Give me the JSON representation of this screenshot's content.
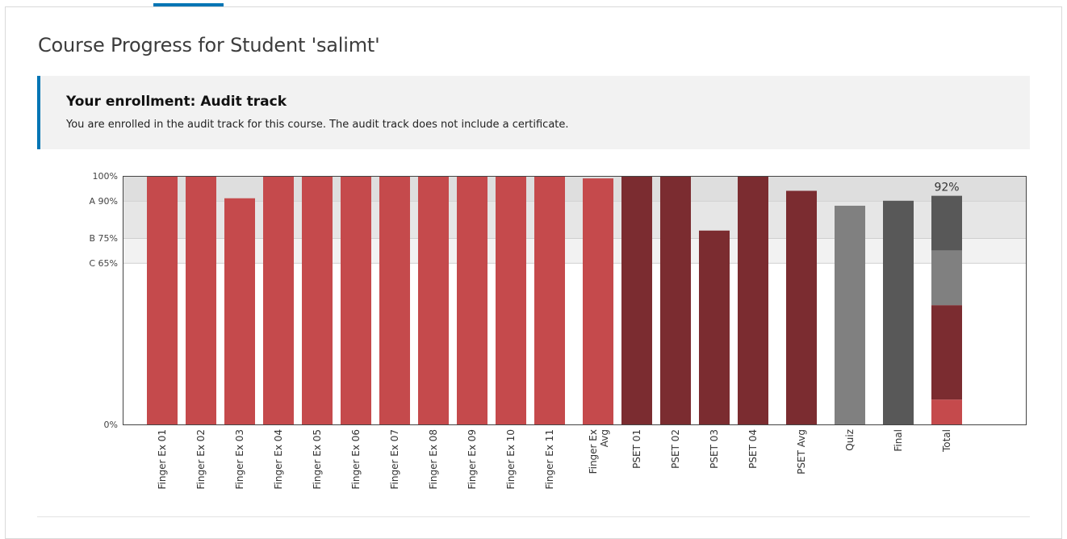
{
  "page": {
    "title": "Course Progress for Student 'salimt'"
  },
  "enrollment": {
    "title": "Your enrollment: Audit track",
    "message": "You are enrolled in the audit track for this course. The audit track does not include a certificate."
  },
  "colors": {
    "accent": "#0075b4",
    "finger_ex": "#c54a4c",
    "pset": "#7b2c30",
    "quiz": "#808080",
    "final": "#585858",
    "band_a": "#dedede",
    "band_b": "#e6e6e6",
    "band_c": "#f2f2f2"
  },
  "chart_data": {
    "type": "bar",
    "ylim": [
      0,
      100
    ],
    "y_ticks": [
      {
        "value": 100,
        "label": "100%"
      },
      {
        "value": 90,
        "label": "A 90%"
      },
      {
        "value": 75,
        "label": "B 75%"
      },
      {
        "value": 65,
        "label": "C 65%"
      },
      {
        "value": 0,
        "label": "0%"
      }
    ],
    "grade_bands": [
      {
        "from": 90,
        "to": 100,
        "grade": "A"
      },
      {
        "from": 75,
        "to": 90,
        "grade": "B"
      },
      {
        "from": 65,
        "to": 75,
        "grade": "C"
      }
    ],
    "bars": [
      {
        "label": "Finger Ex 01",
        "value": 100,
        "group": "finger_ex"
      },
      {
        "label": "Finger Ex 02",
        "value": 100,
        "group": "finger_ex"
      },
      {
        "label": "Finger Ex 03",
        "value": 91,
        "group": "finger_ex"
      },
      {
        "label": "Finger Ex 04",
        "value": 100,
        "group": "finger_ex"
      },
      {
        "label": "Finger Ex 05",
        "value": 100,
        "group": "finger_ex"
      },
      {
        "label": "Finger Ex 06",
        "value": 100,
        "group": "finger_ex"
      },
      {
        "label": "Finger Ex 07",
        "value": 100,
        "group": "finger_ex"
      },
      {
        "label": "Finger Ex 08",
        "value": 100,
        "group": "finger_ex"
      },
      {
        "label": "Finger Ex 09",
        "value": 100,
        "group": "finger_ex"
      },
      {
        "label": "Finger Ex 10",
        "value": 100,
        "group": "finger_ex"
      },
      {
        "label": "Finger Ex 11",
        "value": 100,
        "group": "finger_ex"
      },
      {
        "label": "Finger Ex Avg",
        "value": 99,
        "group": "finger_ex",
        "spacer_before": true
      },
      {
        "label": "PSET 01",
        "value": 100,
        "group": "pset"
      },
      {
        "label": "PSET 02",
        "value": 100,
        "group": "pset"
      },
      {
        "label": "PSET 03",
        "value": 78,
        "group": "pset"
      },
      {
        "label": "PSET 04",
        "value": 100,
        "group": "pset"
      },
      {
        "label": "PSET Avg",
        "value": 94,
        "group": "pset",
        "spacer_before": true
      },
      {
        "label": "Quiz",
        "value": 88,
        "group": "quiz",
        "spacer_before": true
      },
      {
        "label": "Final",
        "value": 90,
        "group": "final",
        "spacer_before": true
      }
    ],
    "total": {
      "label": "Total",
      "value_label": "92%",
      "segments": [
        {
          "group": "finger_ex",
          "value": 10
        },
        {
          "group": "pset",
          "value": 38
        },
        {
          "group": "quiz",
          "value": 22
        },
        {
          "group": "final",
          "value": 22
        }
      ]
    }
  }
}
